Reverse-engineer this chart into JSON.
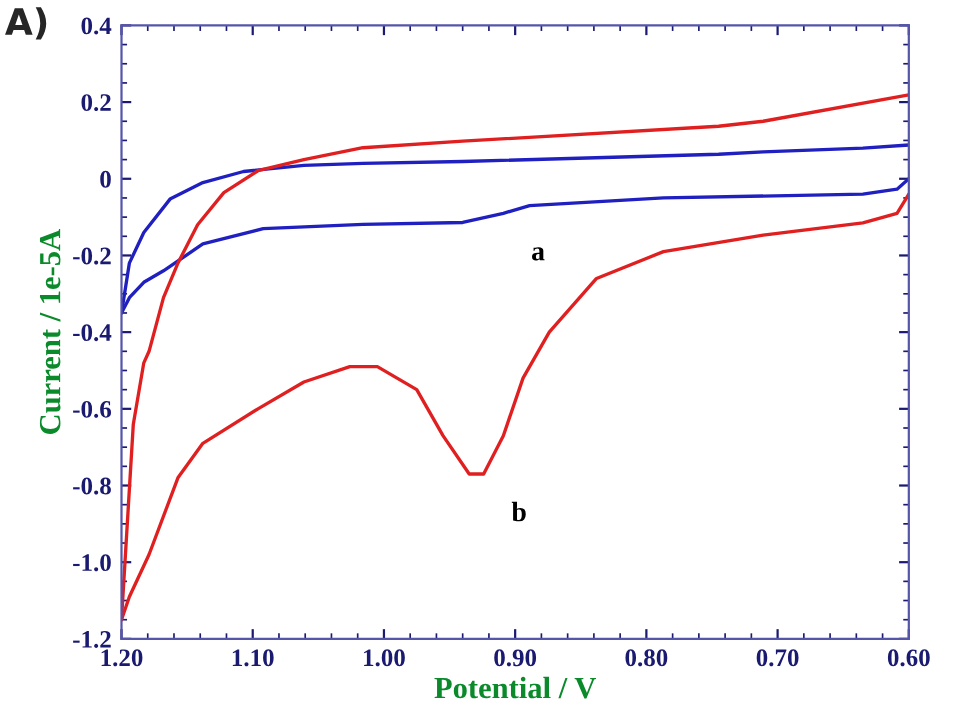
{
  "chart_data": {
    "type": "line",
    "xlabel": "Potential / V",
    "ylabel": "Current / 1e-5A",
    "annotations": [
      "A)",
      {
        "text": "a",
        "x": 0.909,
        "y": -0.09
      },
      {
        "text": "b",
        "x": 0.924,
        "y": -0.77
      }
    ],
    "xlim": [
      1.2,
      0.6
    ],
    "xticks": [
      {
        "value": 1.2,
        "label": "1.20"
      },
      {
        "value": 1.1,
        "label": "1.10"
      },
      {
        "value": 1.0,
        "label": "1.00"
      },
      {
        "value": 0.9,
        "label": "0.90"
      },
      {
        "value": 0.8,
        "label": "0.80"
      },
      {
        "value": 0.7,
        "label": "0.70"
      },
      {
        "value": 0.6,
        "label": "0.60"
      }
    ],
    "ylim": [
      -1.2,
      0.4
    ],
    "yticks": [
      0.4,
      0.2,
      0,
      -0.2,
      -0.4,
      -0.6,
      -0.8,
      {
        "value": -1.0,
        "label": "-1.0"
      },
      -1.2
    ],
    "grid": false,
    "marker": "none",
    "line_style": "solid",
    "series": [
      {
        "color": "#2020c0",
        "x": [
          0.6,
          0.635,
          0.711,
          0.745,
          0.94,
          1.016,
          1.061,
          1.107,
          1.138,
          1.163,
          1.183,
          1.194,
          1.2
        ],
        "values": [
          0.088,
          0.08,
          0.07,
          0.064,
          0.045,
          0.04,
          0.035,
          0.019,
          -0.01,
          -0.053,
          -0.14,
          -0.22,
          -0.35
        ]
      },
      {
        "color": "#2020c0",
        "x": [
          1.2,
          1.194,
          1.183,
          1.168,
          1.138,
          1.092,
          1.016,
          0.94,
          0.909,
          0.889,
          0.787,
          0.635,
          0.609,
          0.6
        ],
        "values": [
          -0.35,
          -0.31,
          -0.27,
          -0.24,
          -0.17,
          -0.13,
          -0.119,
          -0.114,
          -0.09,
          -0.07,
          -0.05,
          -0.04,
          -0.027,
          0.0
        ]
      },
      {
        "color": "#e02020",
        "x": [
          0.6,
          0.711,
          0.745,
          0.94,
          1.016,
          1.061,
          1.096,
          1.122,
          1.142,
          1.157,
          1.168,
          1.179,
          1.183,
          1.191,
          1.197,
          1.2
        ],
        "values": [
          0.219,
          0.15,
          0.137,
          0.098,
          0.081,
          0.05,
          0.021,
          -0.036,
          -0.12,
          -0.22,
          -0.31,
          -0.45,
          -0.48,
          -0.64,
          -0.98,
          -1.15
        ]
      },
      {
        "color": "#e02020",
        "x": [
          1.2,
          1.194,
          1.179,
          1.157,
          1.138,
          1.096,
          1.061,
          1.026,
          1.005,
          0.975,
          0.955,
          0.935,
          0.924,
          0.909,
          0.894,
          0.874,
          0.838,
          0.787,
          0.711,
          0.635,
          0.609,
          0.6
        ],
        "values": [
          -1.15,
          -1.09,
          -0.98,
          -0.78,
          -0.69,
          -0.6,
          -0.53,
          -0.49,
          -0.49,
          -0.55,
          -0.67,
          -0.77,
          -0.77,
          -0.67,
          -0.52,
          -0.4,
          -0.26,
          -0.19,
          -0.147,
          -0.115,
          -0.09,
          -0.04
        ]
      }
    ]
  }
}
